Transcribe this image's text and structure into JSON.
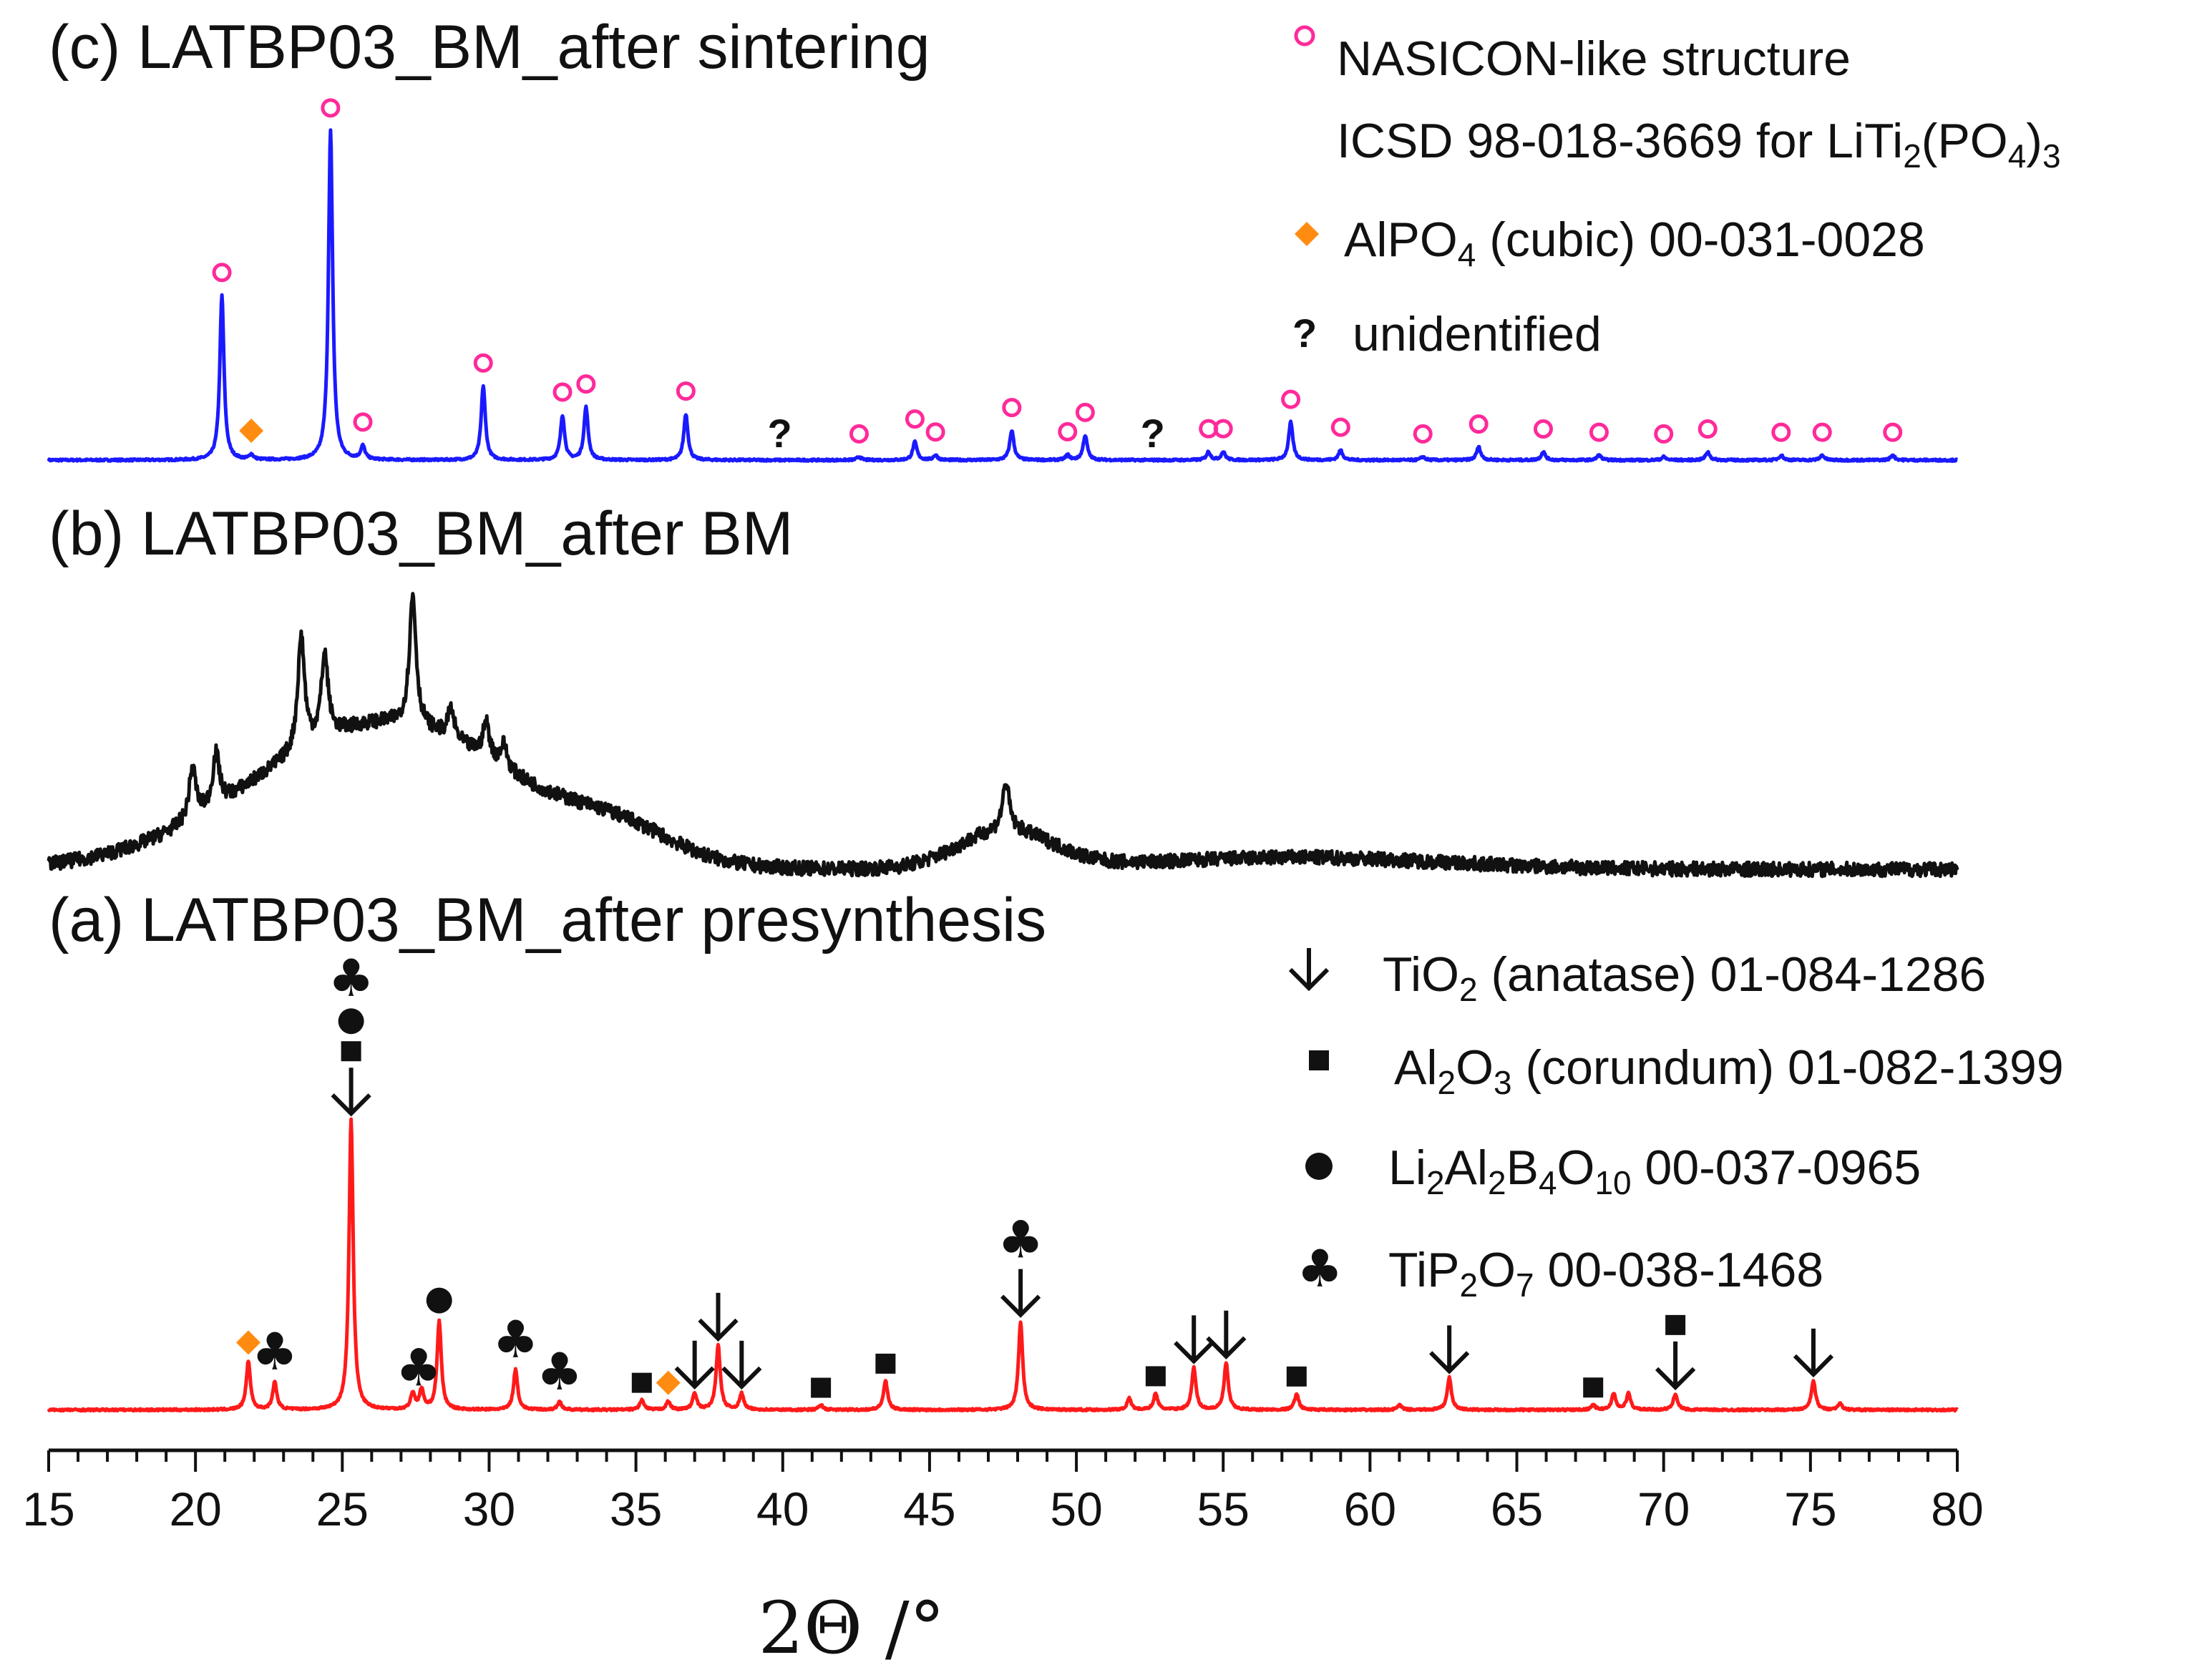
{
  "chart_data": {
    "type": "line",
    "xlabel": "2Θ /°",
    "xlim": [
      15,
      80
    ],
    "xticks": [
      15,
      20,
      25,
      30,
      35,
      40,
      45,
      50,
      55,
      60,
      65,
      70,
      75,
      80
    ],
    "colors": {
      "c": "#1a1aff",
      "b": "#111111",
      "a": "#ff1a1a",
      "nasicon": "#ff2a9a",
      "alpo4": "#ff8c10"
    },
    "panels": [
      {
        "id": "c",
        "title": "(c) LATBP03_BM_after sintering",
        "series_name": "LATBP03_BM_after sintering",
        "baseline": 0.03,
        "peaks": [
          {
            "x": 20.9,
            "h": 1.0
          },
          {
            "x": 21.9,
            "h": 0.03
          },
          {
            "x": 24.6,
            "h": 2.0
          },
          {
            "x": 25.7,
            "h": 0.08
          },
          {
            "x": 29.8,
            "h": 0.45
          },
          {
            "x": 32.5,
            "h": 0.27
          },
          {
            "x": 33.3,
            "h": 0.32
          },
          {
            "x": 36.7,
            "h": 0.28
          },
          {
            "x": 42.6,
            "h": 0.02
          },
          {
            "x": 44.5,
            "h": 0.11
          },
          {
            "x": 45.2,
            "h": 0.03
          },
          {
            "x": 47.8,
            "h": 0.18
          },
          {
            "x": 49.7,
            "h": 0.03
          },
          {
            "x": 50.3,
            "h": 0.15
          },
          {
            "x": 54.5,
            "h": 0.05
          },
          {
            "x": 55.0,
            "h": 0.05
          },
          {
            "x": 57.3,
            "h": 0.23
          },
          {
            "x": 59.0,
            "h": 0.06
          },
          {
            "x": 61.8,
            "h": 0.02
          },
          {
            "x": 63.7,
            "h": 0.08
          },
          {
            "x": 65.9,
            "h": 0.05
          },
          {
            "x": 67.8,
            "h": 0.03
          },
          {
            "x": 70.0,
            "h": 0.02
          },
          {
            "x": 71.5,
            "h": 0.05
          },
          {
            "x": 74.0,
            "h": 0.03
          },
          {
            "x": 75.4,
            "h": 0.03
          },
          {
            "x": 77.8,
            "h": 0.03
          }
        ],
        "markers": [
          {
            "x": 20.9,
            "shape": "circle"
          },
          {
            "x": 24.6,
            "shape": "circle"
          },
          {
            "x": 25.7,
            "shape": "circle"
          },
          {
            "x": 29.8,
            "shape": "circle"
          },
          {
            "x": 32.5,
            "shape": "circle"
          },
          {
            "x": 33.3,
            "shape": "circle"
          },
          {
            "x": 36.7,
            "shape": "circle"
          },
          {
            "x": 42.6,
            "shape": "circle"
          },
          {
            "x": 44.5,
            "shape": "circle"
          },
          {
            "x": 45.2,
            "shape": "circle"
          },
          {
            "x": 47.8,
            "shape": "circle"
          },
          {
            "x": 49.7,
            "shape": "circle"
          },
          {
            "x": 50.3,
            "shape": "circle"
          },
          {
            "x": 54.5,
            "shape": "circle"
          },
          {
            "x": 55.0,
            "shape": "circle"
          },
          {
            "x": 57.3,
            "shape": "circle"
          },
          {
            "x": 59.0,
            "shape": "circle"
          },
          {
            "x": 61.8,
            "shape": "circle"
          },
          {
            "x": 63.7,
            "shape": "circle"
          },
          {
            "x": 65.9,
            "shape": "circle"
          },
          {
            "x": 67.8,
            "shape": "circle"
          },
          {
            "x": 70.0,
            "shape": "circle"
          },
          {
            "x": 71.5,
            "shape": "circle"
          },
          {
            "x": 74.0,
            "shape": "circle"
          },
          {
            "x": 75.4,
            "shape": "circle"
          },
          {
            "x": 77.8,
            "shape": "circle"
          },
          {
            "x": 21.9,
            "shape": "diamond"
          },
          {
            "x": 39.9,
            "shape": "question"
          },
          {
            "x": 52.6,
            "shape": "question"
          }
        ]
      },
      {
        "id": "b",
        "title": "(b) LATBP03_BM_after BM",
        "series_name": "LATBP03_BM_after BM",
        "noise": 0.06,
        "humps": [
          {
            "x": 26.5,
            "h": 0.62,
            "w": 4.5
          },
          {
            "x": 34.5,
            "h": 0.1,
            "w": 1.8
          },
          {
            "x": 47.6,
            "h": 0.16,
            "w": 1.6
          },
          {
            "x": 57.5,
            "h": 0.05,
            "w": 5.0
          }
        ],
        "peaks": [
          {
            "x": 19.9,
            "h": 0.22
          },
          {
            "x": 20.7,
            "h": 0.22
          },
          {
            "x": 23.6,
            "h": 0.48
          },
          {
            "x": 24.4,
            "h": 0.35
          },
          {
            "x": 27.4,
            "h": 0.55
          },
          {
            "x": 28.7,
            "h": 0.12
          },
          {
            "x": 29.9,
            "h": 0.15
          },
          {
            "x": 30.5,
            "h": 0.1
          },
          {
            "x": 47.6,
            "h": 0.2
          }
        ]
      },
      {
        "id": "a",
        "title": "(a) LATBP03_BM_after presynthesis",
        "series_name": "LATBP03_BM_after presynthesis",
        "baseline": 0.02,
        "peaks": [
          {
            "x": 21.8,
            "h": 0.3
          },
          {
            "x": 22.7,
            "h": 0.17
          },
          {
            "x": 25.3,
            "h": 1.8
          },
          {
            "x": 27.4,
            "h": 0.1
          },
          {
            "x": 27.7,
            "h": 0.12
          },
          {
            "x": 28.3,
            "h": 0.55
          },
          {
            "x": 30.9,
            "h": 0.25
          },
          {
            "x": 32.4,
            "h": 0.05
          },
          {
            "x": 35.2,
            "h": 0.06
          },
          {
            "x": 36.1,
            "h": 0.05
          },
          {
            "x": 37.0,
            "h": 0.1
          },
          {
            "x": 37.8,
            "h": 0.4
          },
          {
            "x": 38.6,
            "h": 0.1
          },
          {
            "x": 41.3,
            "h": 0.03
          },
          {
            "x": 43.5,
            "h": 0.18
          },
          {
            "x": 48.1,
            "h": 0.55
          },
          {
            "x": 51.8,
            "h": 0.07
          },
          {
            "x": 52.7,
            "h": 0.1
          },
          {
            "x": 54.0,
            "h": 0.26
          },
          {
            "x": 55.1,
            "h": 0.29
          },
          {
            "x": 57.5,
            "h": 0.1
          },
          {
            "x": 61.0,
            "h": 0.03
          },
          {
            "x": 62.7,
            "h": 0.2
          },
          {
            "x": 67.6,
            "h": 0.03
          },
          {
            "x": 68.3,
            "h": 0.1
          },
          {
            "x": 68.8,
            "h": 0.1
          },
          {
            "x": 70.4,
            "h": 0.1
          },
          {
            "x": 75.1,
            "h": 0.18
          },
          {
            "x": 76.0,
            "h": 0.04
          }
        ],
        "markers": [
          {
            "x": 21.8,
            "shape": "diamond",
            "row": 0
          },
          {
            "x": 22.7,
            "shape": "club",
            "row": 0
          },
          {
            "x": 25.3,
            "shape": "arrow",
            "row": 0
          },
          {
            "x": 25.3,
            "shape": "square",
            "row": 1
          },
          {
            "x": 25.3,
            "shape": "dot",
            "row": 2
          },
          {
            "x": 25.3,
            "shape": "club",
            "row": 3
          },
          {
            "x": 27.6,
            "shape": "club",
            "row": 0
          },
          {
            "x": 28.3,
            "shape": "dot",
            "row": 0
          },
          {
            "x": 30.9,
            "shape": "club",
            "row": 0
          },
          {
            "x": 32.4,
            "shape": "club",
            "row": 0
          },
          {
            "x": 35.2,
            "shape": "square",
            "row": 0
          },
          {
            "x": 36.1,
            "shape": "diamond",
            "row": 0
          },
          {
            "x": 37.0,
            "shape": "arrow",
            "row": 0
          },
          {
            "x": 37.8,
            "shape": "arrow",
            "row": 0
          },
          {
            "x": 38.6,
            "shape": "arrow",
            "row": 0
          },
          {
            "x": 41.3,
            "shape": "square",
            "row": 0
          },
          {
            "x": 43.5,
            "shape": "square",
            "row": 0
          },
          {
            "x": 48.1,
            "shape": "arrow",
            "row": 0
          },
          {
            "x": 48.1,
            "shape": "club",
            "row": 1
          },
          {
            "x": 52.7,
            "shape": "square",
            "row": 0
          },
          {
            "x": 54.0,
            "shape": "arrow",
            "row": 0
          },
          {
            "x": 55.1,
            "shape": "arrow",
            "row": 0
          },
          {
            "x": 57.5,
            "shape": "square",
            "row": 0
          },
          {
            "x": 62.7,
            "shape": "arrow",
            "row": 0
          },
          {
            "x": 67.6,
            "shape": "square",
            "row": 0
          },
          {
            "x": 70.4,
            "shape": "arrow",
            "row": 0
          },
          {
            "x": 70.4,
            "shape": "square",
            "row": 1
          },
          {
            "x": 75.1,
            "shape": "arrow",
            "row": 0
          }
        ]
      }
    ],
    "legend_top": [
      {
        "shape": "circle",
        "text": "NASICON-like structure"
      },
      {
        "shape": "none",
        "text": "ICSD 98-018-3669 for LiTi",
        "sub1": "2",
        "mid": "(PO",
        "sub2": "4",
        "tail": ")",
        "sub3": "3"
      },
      {
        "shape": "diamond",
        "text": "AlPO",
        "sub1": "4",
        "tail": " (cubic) 00-031-0028"
      },
      {
        "shape": "question",
        "symbol": "?",
        "text": "unidentified"
      }
    ],
    "legend_bottom": [
      {
        "shape": "arrow",
        "text": "TiO",
        "sub1": "2",
        "tail": " (anatase) 01-084-1286"
      },
      {
        "shape": "square",
        "text": "Al",
        "sub1": "2",
        "mid": "O",
        "sub2": "3",
        "tail": " (corundum)  01-082-1399"
      },
      {
        "shape": "dot",
        "text": "Li",
        "sub1": "2",
        "mid": "Al",
        "sub2": "2",
        "mid2": "B",
        "sub3": "4",
        "mid3": "O",
        "sub4": "10",
        "tail": " 00-037-0965"
      },
      {
        "shape": "club",
        "text": "TiP",
        "sub1": "2",
        "mid": "O",
        "sub2": "7",
        "tail": " 00-038-1468"
      }
    ]
  }
}
